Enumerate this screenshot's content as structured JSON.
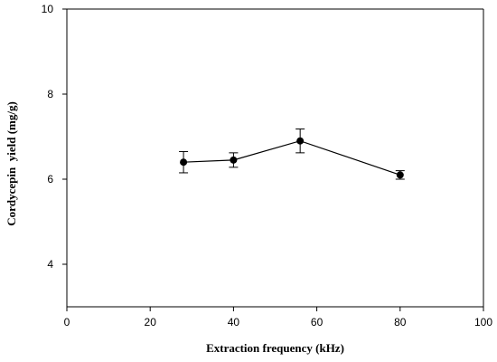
{
  "chart_data": {
    "type": "line",
    "title": "",
    "xlabel": "Extraction frequency (kHz)",
    "ylabel": "Cordycepin  yield (mg/g)",
    "xlim": [
      0,
      100
    ],
    "ylim": [
      3,
      10
    ],
    "x_ticks": [
      "0",
      "20",
      "40",
      "60",
      "80",
      "100"
    ],
    "y_ticks": [
      "4",
      "6",
      "8",
      "10"
    ],
    "grid": false,
    "legend": "none",
    "series": [
      {
        "x": [
          28,
          40,
          56,
          80
        ],
        "y": [
          6.4,
          6.45,
          6.9,
          6.1
        ],
        "error": [
          0.25,
          0.17,
          0.28,
          0.1
        ],
        "color": "#000000",
        "marker": "filled-circle"
      }
    ]
  }
}
